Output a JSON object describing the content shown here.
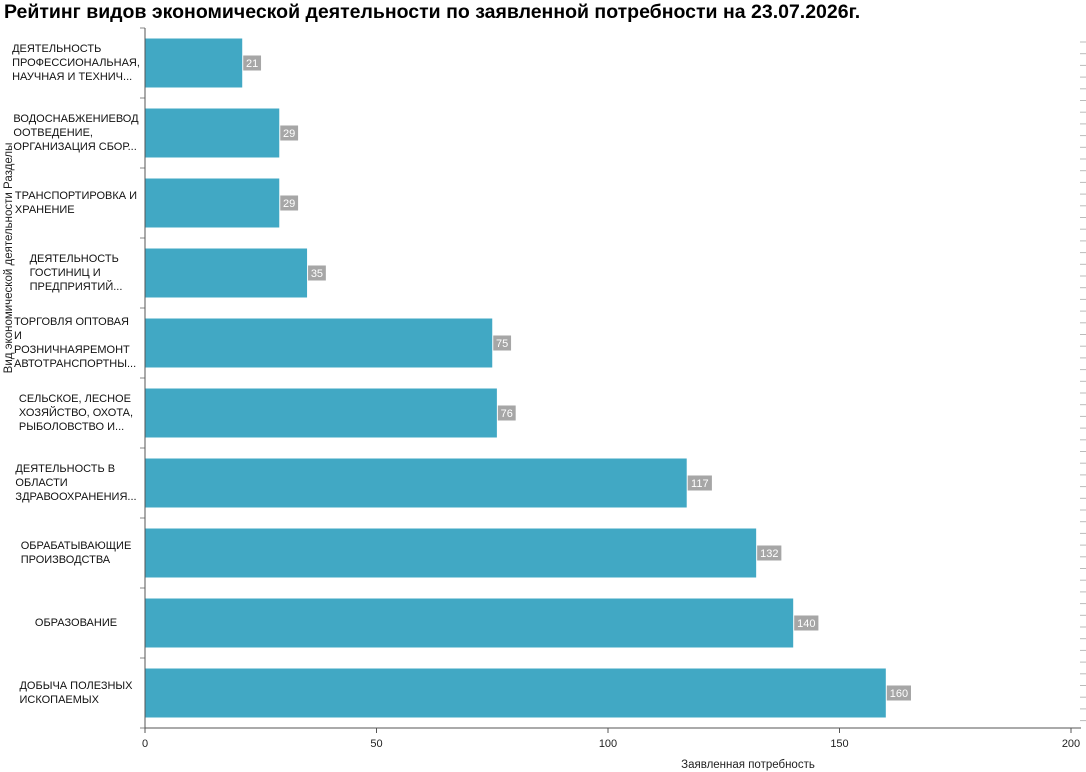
{
  "title": "Рейтинг видов экономической деятельности по заявленной потребности на 23.07.2026г.",
  "colors": {
    "bar": "#41a8c4",
    "value_label_bg": "#a6a6a6",
    "value_label_text": "#ffffff",
    "axis": "#555555"
  },
  "chart_data": {
    "type": "bar",
    "orientation": "horizontal",
    "title": "Рейтинг видов экономической деятельности по заявленной потребности на 23.07.2026г.",
    "xlabel": "Заявленная потребность",
    "ylabel": "Вид экономической деятельности Разделы",
    "xlim": [
      0,
      200
    ],
    "xticks": [
      0,
      50,
      100,
      150,
      200
    ],
    "grid": false,
    "legend": "none",
    "categories": [
      [
        "ДЕЯТЕЛЬНОСТЬ",
        "ПРОФЕССИОНАЛЬНАЯ,",
        "НАУЧНАЯ И ТЕХНИЧ..."
      ],
      [
        "ВОДОСНАБЖЕНИЕВОД",
        "ООТВЕДЕНИЕ,",
        "ОРГАНИЗАЦИЯ СБОР..."
      ],
      [
        "ТРАНСПОРТИРОВКА И",
        "ХРАНЕНИЕ"
      ],
      [
        "ДЕЯТЕЛЬНОСТЬ",
        "ГОСТИНИЦ И",
        "ПРЕДПРИЯТИЙ..."
      ],
      [
        "ТОРГОВЛЯ ОПТОВАЯ И",
        "РОЗНИЧНАЯРЕМОНТ",
        "АВТОТРАНСПОРТНЫ..."
      ],
      [
        "СЕЛЬСКОЕ, ЛЕСНОЕ",
        "ХОЗЯЙСТВО, ОХОТА,",
        "РЫБОЛОВСТВО И..."
      ],
      [
        "ДЕЯТЕЛЬНОСТЬ В",
        "ОБЛАСТИ",
        "ЗДРАВООХРАНЕНИЯ..."
      ],
      [
        "ОБРАБАТЫВАЮЩИЕ",
        "ПРОИЗВОДСТВА"
      ],
      [
        "ОБРАЗОВАНИЕ"
      ],
      [
        "ДОБЫЧА ПОЛЕЗНЫХ",
        "ИСКОПАЕМЫХ"
      ]
    ],
    "values": [
      21,
      29,
      29,
      35,
      75,
      76,
      117,
      132,
      140,
      160
    ],
    "value_labels": [
      "21",
      "29",
      "29",
      "35",
      "75",
      "76",
      "117",
      "132",
      "140",
      "160"
    ],
    "xtick_labels": [
      "0",
      "50",
      "100",
      "150",
      "200"
    ]
  }
}
